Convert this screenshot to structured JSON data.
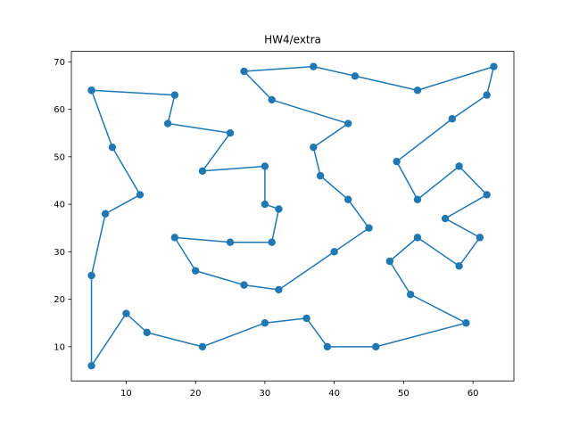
{
  "chart_data": {
    "type": "line",
    "title": "HW4/extra",
    "xlabel": "",
    "ylabel": "",
    "xlim": [
      2.1,
      65.9
    ],
    "ylim": [
      2.8,
      72.2
    ],
    "xticks": [
      10,
      20,
      30,
      40,
      50,
      60
    ],
    "yticks": [
      10,
      20,
      30,
      40,
      50,
      60,
      70
    ],
    "grid": false,
    "legend": "none",
    "series": [
      {
        "color": "#1f77b4",
        "marker": "circle",
        "x": [
          5,
          17,
          16,
          25,
          21,
          30,
          30,
          32,
          31,
          25,
          17,
          20,
          27,
          32,
          40,
          45,
          42,
          38,
          37,
          42,
          31,
          27,
          37,
          43,
          52,
          63,
          62,
          57,
          49,
          52,
          58,
          62,
          56,
          61,
          58,
          52,
          48,
          51,
          59,
          46,
          39,
          36,
          30,
          21,
          13,
          10,
          5,
          5,
          7,
          12,
          8,
          5
        ],
        "y": [
          64,
          63,
          57,
          55,
          47,
          48,
          40,
          39,
          32,
          32,
          33,
          26,
          23,
          22,
          30,
          35,
          41,
          46,
          52,
          57,
          62,
          68,
          69,
          67,
          64,
          69,
          63,
          58,
          49,
          41,
          48,
          42,
          37,
          33,
          27,
          33,
          28,
          21,
          15,
          10,
          10,
          16,
          15,
          10,
          13,
          17,
          6,
          25,
          38,
          42,
          52,
          64
        ]
      }
    ]
  }
}
